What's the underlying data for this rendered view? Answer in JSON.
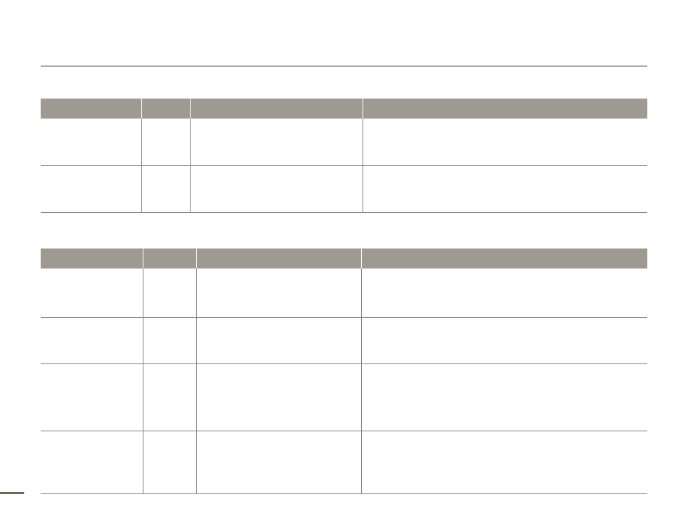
{
  "colors": {
    "header_fill": "#9e9a91",
    "rule": "#231f20",
    "grid": "#808080",
    "page_marker": "#6b6b55"
  },
  "tables": [
    {
      "headers": [
        "",
        "",
        "",
        ""
      ],
      "rows": [
        [
          "",
          "",
          "",
          ""
        ],
        [
          "",
          "",
          "",
          ""
        ]
      ]
    },
    {
      "headers": [
        "",
        "",
        "",
        ""
      ],
      "rows": [
        [
          "",
          "",
          "",
          ""
        ],
        [
          "",
          "",
          "",
          ""
        ],
        [
          "",
          "",
          "",
          ""
        ],
        [
          "",
          "",
          "",
          ""
        ]
      ]
    }
  ]
}
